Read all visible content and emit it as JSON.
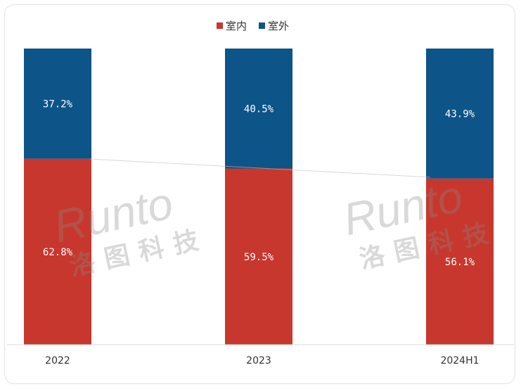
{
  "chart_data": {
    "type": "bar",
    "stacked": true,
    "percent": true,
    "categories": [
      "2022",
      "2023",
      "2024H1"
    ],
    "series": [
      {
        "name": "室内",
        "color": "#c8372d",
        "values": [
          62.8,
          59.5,
          56.1
        ],
        "labels": [
          "62.8%",
          "59.5%",
          "56.1%"
        ]
      },
      {
        "name": "室外",
        "color": "#0d5488",
        "values": [
          37.2,
          40.5,
          43.9
        ],
        "labels": [
          "37.2%",
          "40.5%",
          "43.9%"
        ]
      }
    ],
    "ylim": [
      0,
      100
    ],
    "grid": false,
    "legend": "top-center"
  },
  "watermark": {
    "brand": "Runto",
    "name_cn": "洛图科技"
  }
}
